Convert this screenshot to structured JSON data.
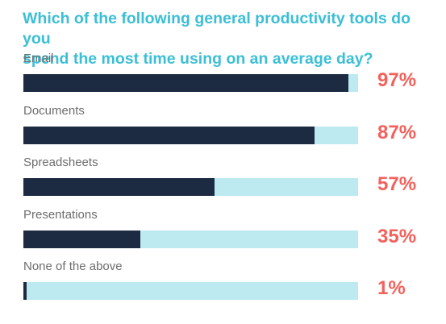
{
  "title_lines": [
    "Which of the following general productivity tools do you",
    "spend the most time using on an average day?"
  ],
  "colors": {
    "title": "#3bbfd6",
    "bar_fill": "#1c2b42",
    "bar_track": "#bde9f1",
    "percent_text": "#f2615c",
    "label_text": "#6d6d6d"
  },
  "chart_data": {
    "type": "bar",
    "orientation": "horizontal",
    "title": "Which of the following general productivity tools do you spend the most time using on an average day?",
    "categories": [
      "Email",
      "Documents",
      "Spreadsheets",
      "Presentations",
      "None of the above"
    ],
    "values": [
      97,
      87,
      57,
      35,
      1
    ],
    "value_labels": [
      "97%",
      "87%",
      "57%",
      "35%",
      "1%"
    ],
    "xlim": [
      0,
      100
    ],
    "grid": false,
    "legend": "none"
  }
}
